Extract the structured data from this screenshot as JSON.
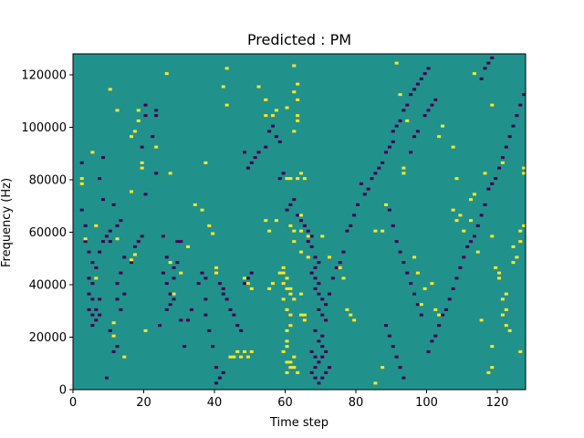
{
  "chart_data": {
    "type": "heatmap",
    "title": "Predicted : PM",
    "xlabel": "Time step",
    "ylabel": "Frequency (Hz)",
    "xlim": [
      0,
      128
    ],
    "ylim": [
      0,
      128000
    ],
    "x_ticks": [
      0,
      20,
      40,
      60,
      80,
      100,
      120
    ],
    "y_ticks": [
      0,
      20000,
      40000,
      60000,
      80000,
      100000,
      120000
    ],
    "x_tick_labels": [
      "0",
      "20",
      "40",
      "60",
      "80",
      "100",
      "120"
    ],
    "y_tick_labels": [
      "0",
      "20000",
      "40000",
      "60000",
      "80000",
      "100000",
      "120000"
    ],
    "grid": false,
    "colormap": "viridis",
    "colors": {
      "low": "#440154",
      "mid": "#21918c",
      "high": "#fde725"
    },
    "background_value": 0,
    "n_time_steps": 128,
    "n_freq_bins": 128,
    "cells_high": [
      [
        2,
        80
      ],
      [
        2,
        78
      ],
      [
        3,
        57
      ],
      [
        6,
        42
      ],
      [
        6,
        62
      ],
      [
        11,
        20
      ],
      [
        11,
        25
      ],
      [
        12,
        57
      ],
      [
        12,
        106
      ],
      [
        5,
        90
      ],
      [
        10,
        114
      ],
      [
        14,
        12
      ],
      [
        16,
        75
      ],
      [
        16,
        96
      ],
      [
        17,
        98
      ],
      [
        18,
        106
      ],
      [
        18,
        102
      ],
      [
        19,
        84
      ],
      [
        19,
        86
      ],
      [
        16,
        49
      ],
      [
        17,
        51
      ],
      [
        20,
        22
      ],
      [
        26,
        120
      ],
      [
        23,
        92
      ],
      [
        27,
        82
      ],
      [
        27,
        48
      ],
      [
        28,
        36
      ],
      [
        30,
        44
      ],
      [
        32,
        54
      ],
      [
        34,
        70
      ],
      [
        36,
        68
      ],
      [
        38,
        62
      ],
      [
        39,
        59
      ],
      [
        40,
        46
      ],
      [
        40,
        44
      ],
      [
        37,
        86
      ],
      [
        43,
        108
      ],
      [
        42,
        115
      ],
      [
        43,
        122
      ],
      [
        44,
        12
      ],
      [
        45,
        12
      ],
      [
        46,
        14
      ],
      [
        47,
        12
      ],
      [
        48,
        14
      ],
      [
        49,
        12
      ],
      [
        50,
        14
      ],
      [
        48,
        42
      ],
      [
        49,
        40
      ],
      [
        50,
        38
      ],
      [
        52,
        115
      ],
      [
        54,
        110
      ],
      [
        54,
        104
      ],
      [
        56,
        104
      ],
      [
        57,
        106
      ],
      [
        55,
        38
      ],
      [
        56,
        40
      ],
      [
        58,
        44
      ],
      [
        59,
        46
      ],
      [
        59,
        44
      ],
      [
        60,
        42
      ],
      [
        59,
        40
      ],
      [
        60,
        38
      ],
      [
        59,
        34
      ],
      [
        60,
        30
      ],
      [
        61,
        28
      ],
      [
        61,
        24
      ],
      [
        60,
        22
      ],
      [
        60,
        18
      ],
      [
        60,
        16
      ],
      [
        59,
        14
      ],
      [
        60,
        10
      ],
      [
        61,
        10
      ],
      [
        62,
        12
      ],
      [
        62,
        8
      ],
      [
        63,
        6
      ],
      [
        60,
        6
      ],
      [
        61,
        8
      ],
      [
        61,
        38
      ],
      [
        61,
        36
      ],
      [
        62,
        34
      ],
      [
        64,
        36
      ],
      [
        62,
        56
      ],
      [
        61,
        62
      ],
      [
        62,
        60
      ],
      [
        64,
        66
      ],
      [
        64,
        60
      ],
      [
        66,
        58
      ],
      [
        64,
        52
      ],
      [
        66,
        50
      ],
      [
        65,
        26
      ],
      [
        65,
        28
      ],
      [
        64,
        28
      ],
      [
        62,
        98
      ],
      [
        63,
        116
      ],
      [
        60,
        107
      ],
      [
        63,
        102
      ],
      [
        63,
        104
      ],
      [
        63,
        110
      ],
      [
        62,
        113
      ],
      [
        62,
        123
      ],
      [
        55,
        60
      ],
      [
        54,
        64
      ],
      [
        57,
        64
      ],
      [
        60,
        80
      ],
      [
        61,
        80
      ],
      [
        63,
        80
      ],
      [
        64,
        82
      ],
      [
        65,
        80
      ],
      [
        70,
        58
      ],
      [
        72,
        50
      ],
      [
        75,
        46
      ],
      [
        76,
        42
      ],
      [
        77,
        30
      ],
      [
        78,
        28
      ],
      [
        79,
        26
      ],
      [
        85,
        2
      ],
      [
        85,
        60
      ],
      [
        87,
        8
      ],
      [
        87,
        60
      ],
      [
        88,
        70
      ],
      [
        91,
        124
      ],
      [
        92,
        112
      ],
      [
        94,
        102
      ],
      [
        93,
        82
      ],
      [
        93,
        84
      ],
      [
        96,
        50
      ],
      [
        97,
        44
      ],
      [
        99,
        38
      ],
      [
        98,
        32
      ],
      [
        101,
        40
      ],
      [
        102,
        30
      ],
      [
        103,
        28
      ],
      [
        103,
        96
      ],
      [
        104,
        100
      ],
      [
        107,
        92
      ],
      [
        108,
        80
      ],
      [
        107,
        68
      ],
      [
        108,
        64
      ],
      [
        109,
        66
      ],
      [
        110,
        60
      ],
      [
        112,
        72
      ],
      [
        113,
        74
      ],
      [
        113,
        120
      ],
      [
        115,
        26
      ],
      [
        112,
        64
      ],
      [
        116,
        82
      ],
      [
        117,
        6
      ],
      [
        118,
        8
      ],
      [
        118,
        16
      ],
      [
        119,
        46
      ],
      [
        120,
        44
      ],
      [
        120,
        42
      ],
      [
        121,
        34
      ],
      [
        122,
        36
      ],
      [
        122,
        30
      ],
      [
        121,
        28
      ],
      [
        122,
        24
      ],
      [
        123,
        22
      ],
      [
        124,
        48
      ],
      [
        124,
        54
      ],
      [
        125,
        50
      ],
      [
        126,
        56
      ],
      [
        126,
        60
      ],
      [
        127,
        62
      ],
      [
        126,
        14
      ],
      [
        127,
        84
      ],
      [
        127,
        82
      ],
      [
        114,
        52
      ],
      [
        118,
        58
      ],
      [
        121,
        86
      ],
      [
        118,
        108
      ]
    ],
    "cells_low": [
      [
        2,
        86
      ],
      [
        2,
        68
      ],
      [
        3,
        62
      ],
      [
        3,
        56
      ],
      [
        4,
        52
      ],
      [
        5,
        48
      ],
      [
        4,
        42
      ],
      [
        4,
        36
      ],
      [
        5,
        34
      ],
      [
        4,
        30
      ],
      [
        5,
        28
      ],
      [
        5,
        24
      ],
      [
        6,
        26
      ],
      [
        7,
        28
      ],
      [
        6,
        30
      ],
      [
        7,
        34
      ],
      [
        5,
        40
      ],
      [
        6,
        46
      ],
      [
        7,
        52
      ],
      [
        8,
        56
      ],
      [
        9,
        58
      ],
      [
        10,
        56
      ],
      [
        10,
        60
      ],
      [
        8,
        72
      ],
      [
        7,
        80
      ],
      [
        8,
        88
      ],
      [
        11,
        70
      ],
      [
        12,
        62
      ],
      [
        13,
        64
      ],
      [
        14,
        50
      ],
      [
        13,
        44
      ],
      [
        12,
        40
      ],
      [
        12,
        16
      ],
      [
        10,
        22
      ],
      [
        9,
        4
      ],
      [
        11,
        14
      ],
      [
        12,
        34
      ],
      [
        13,
        30
      ],
      [
        14,
        36
      ],
      [
        16,
        48
      ],
      [
        17,
        54
      ],
      [
        18,
        56
      ],
      [
        19,
        58
      ],
      [
        20,
        74
      ],
      [
        19,
        92
      ],
      [
        20,
        104
      ],
      [
        20,
        108
      ],
      [
        23,
        82
      ],
      [
        22,
        96
      ],
      [
        23,
        104
      ],
      [
        23,
        106
      ],
      [
        25,
        58
      ],
      [
        25,
        44
      ],
      [
        26,
        50
      ],
      [
        26,
        40
      ],
      [
        27,
        32
      ],
      [
        28,
        42
      ],
      [
        28,
        46
      ],
      [
        29,
        48
      ],
      [
        29,
        56
      ],
      [
        30,
        56
      ],
      [
        24,
        24
      ],
      [
        26,
        30
      ],
      [
        27,
        36
      ],
      [
        28,
        34
      ],
      [
        30,
        26
      ],
      [
        31,
        16
      ],
      [
        32,
        26
      ],
      [
        33,
        30
      ],
      [
        35,
        40
      ],
      [
        36,
        44
      ],
      [
        37,
        42
      ],
      [
        37,
        34
      ],
      [
        37,
        28
      ],
      [
        38,
        22
      ],
      [
        39,
        16
      ],
      [
        40,
        8
      ],
      [
        41,
        4
      ],
      [
        42,
        6
      ],
      [
        40,
        2
      ],
      [
        41,
        40
      ],
      [
        42,
        38
      ],
      [
        42,
        36
      ],
      [
        43,
        34
      ],
      [
        44,
        30
      ],
      [
        45,
        28
      ],
      [
        46,
        24
      ],
      [
        47,
        22
      ],
      [
        48,
        40
      ],
      [
        49,
        42
      ],
      [
        50,
        44
      ],
      [
        48,
        90
      ],
      [
        49,
        84
      ],
      [
        50,
        86
      ],
      [
        51,
        88
      ],
      [
        52,
        90
      ],
      [
        54,
        92
      ],
      [
        55,
        98
      ],
      [
        56,
        100
      ],
      [
        57,
        96
      ],
      [
        58,
        94
      ],
      [
        58,
        80
      ],
      [
        59,
        82
      ],
      [
        60,
        68
      ],
      [
        61,
        70
      ],
      [
        62,
        72
      ],
      [
        63,
        66
      ],
      [
        64,
        64
      ],
      [
        65,
        62
      ],
      [
        66,
        60
      ],
      [
        67,
        58
      ],
      [
        66,
        56
      ],
      [
        67,
        54
      ],
      [
        68,
        50
      ],
      [
        69,
        48
      ],
      [
        68,
        46
      ],
      [
        67,
        44
      ],
      [
        68,
        42
      ],
      [
        69,
        40
      ],
      [
        68,
        38
      ],
      [
        69,
        36
      ],
      [
        70,
        34
      ],
      [
        69,
        30
      ],
      [
        70,
        28
      ],
      [
        71,
        26
      ],
      [
        70,
        20
      ],
      [
        69,
        18
      ],
      [
        70,
        16
      ],
      [
        71,
        14
      ],
      [
        70,
        12
      ],
      [
        69,
        10
      ],
      [
        68,
        8
      ],
      [
        67,
        6
      ],
      [
        68,
        4
      ],
      [
        69,
        2
      ],
      [
        70,
        4
      ],
      [
        71,
        6
      ],
      [
        72,
        8
      ],
      [
        68,
        12
      ],
      [
        67,
        14
      ],
      [
        68,
        22
      ],
      [
        71,
        32
      ],
      [
        72,
        36
      ],
      [
        73,
        42
      ],
      [
        74,
        46
      ],
      [
        75,
        48
      ],
      [
        76,
        52
      ],
      [
        77,
        60
      ],
      [
        78,
        62
      ],
      [
        79,
        66
      ],
      [
        80,
        70
      ],
      [
        81,
        78
      ],
      [
        82,
        74
      ],
      [
        83,
        76
      ],
      [
        84,
        80
      ],
      [
        85,
        82
      ],
      [
        86,
        84
      ],
      [
        87,
        86
      ],
      [
        88,
        90
      ],
      [
        89,
        92
      ],
      [
        90,
        94
      ],
      [
        90,
        98
      ],
      [
        91,
        100
      ],
      [
        92,
        102
      ],
      [
        93,
        106
      ],
      [
        94,
        108
      ],
      [
        95,
        112
      ],
      [
        96,
        114
      ],
      [
        97,
        116
      ],
      [
        98,
        118
      ],
      [
        99,
        120
      ],
      [
        100,
        122
      ],
      [
        95,
        90
      ],
      [
        96,
        96
      ],
      [
        97,
        98
      ],
      [
        99,
        104
      ],
      [
        100,
        106
      ],
      [
        101,
        108
      ],
      [
        102,
        110
      ],
      [
        89,
        68
      ],
      [
        90,
        62
      ],
      [
        91,
        56
      ],
      [
        92,
        52
      ],
      [
        93,
        48
      ],
      [
        94,
        44
      ],
      [
        95,
        40
      ],
      [
        96,
        36
      ],
      [
        97,
        32
      ],
      [
        98,
        28
      ],
      [
        88,
        24
      ],
      [
        89,
        20
      ],
      [
        90,
        16
      ],
      [
        91,
        12
      ],
      [
        92,
        8
      ],
      [
        93,
        4
      ],
      [
        100,
        14
      ],
      [
        101,
        18
      ],
      [
        102,
        20
      ],
      [
        103,
        24
      ],
      [
        104,
        28
      ],
      [
        105,
        30
      ],
      [
        106,
        34
      ],
      [
        107,
        38
      ],
      [
        108,
        42
      ],
      [
        109,
        46
      ],
      [
        110,
        50
      ],
      [
        111,
        54
      ],
      [
        112,
        56
      ],
      [
        113,
        58
      ],
      [
        114,
        62
      ],
      [
        115,
        66
      ],
      [
        116,
        70
      ],
      [
        117,
        76
      ],
      [
        118,
        78
      ],
      [
        119,
        80
      ],
      [
        120,
        84
      ],
      [
        121,
        88
      ],
      [
        122,
        92
      ],
      [
        123,
        96
      ],
      [
        124,
        100
      ],
      [
        125,
        104
      ],
      [
        126,
        108
      ],
      [
        127,
        112
      ],
      [
        115,
        118
      ],
      [
        116,
        122
      ],
      [
        117,
        124
      ],
      [
        118,
        126
      ]
    ]
  }
}
